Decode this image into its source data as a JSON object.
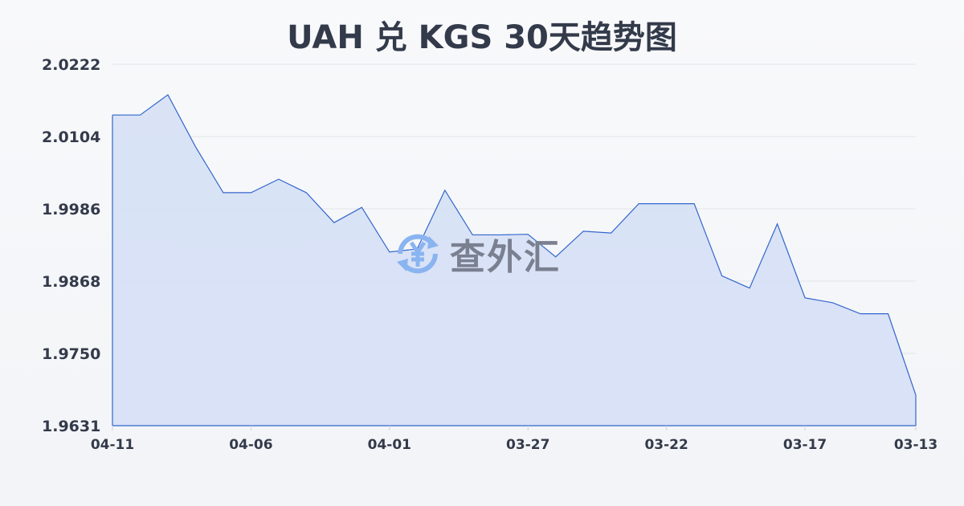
{
  "chart_data": {
    "type": "area",
    "title": "UAH 兑 KGS 30天趋势图",
    "xlabel": "",
    "ylabel": "",
    "ylim": [
      1.9631,
      2.0222
    ],
    "yticks": [
      "2.0222",
      "2.0104",
      "1.9986",
      "1.9868",
      "1.9750",
      "1.9631"
    ],
    "xticks": [
      "04-11",
      "04-06",
      "04-01",
      "03-27",
      "03-22",
      "03-17",
      "03-13"
    ],
    "grid": true,
    "line_color": "#3366cc",
    "fill_color": "#d6e0f5",
    "values": [
      2.0139,
      2.0139,
      2.0172,
      2.0087,
      2.0012,
      2.0012,
      2.0034,
      2.0012,
      1.9963,
      1.9988,
      1.9915,
      1.992,
      2.0016,
      1.9943,
      1.9943,
      1.9944,
      1.9907,
      1.9949,
      1.9946,
      1.9994,
      1.9994,
      1.9994,
      1.9876,
      1.9856,
      1.9961,
      1.984,
      1.9832,
      1.9814,
      1.9814,
      1.9681
    ]
  },
  "watermark": {
    "text": "查外汇",
    "icon": "yen-exchange-icon"
  }
}
